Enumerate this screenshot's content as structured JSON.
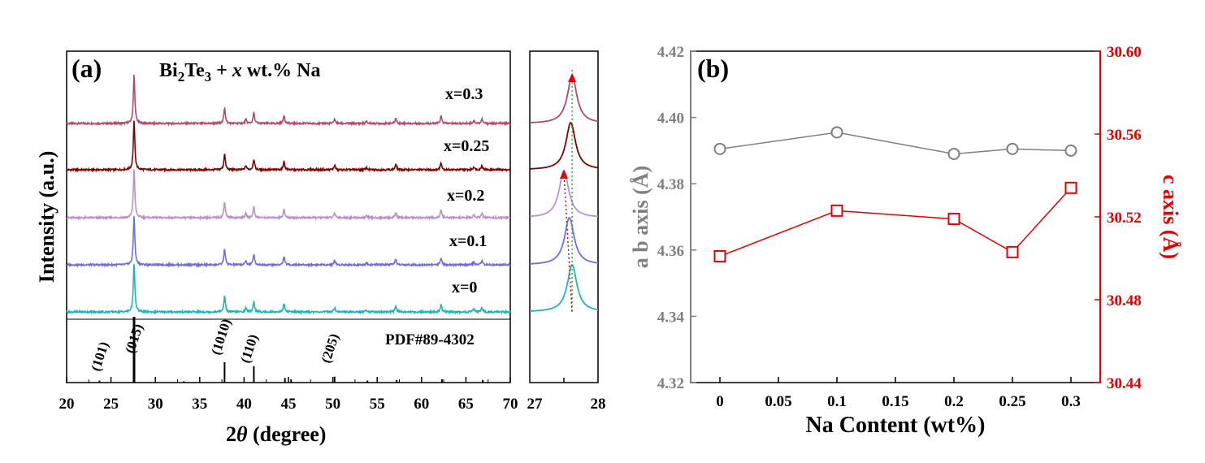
{
  "chart_data": [
    {
      "type": "line",
      "panel_label": "(a)",
      "title_parts": {
        "formula_a": "Bi",
        "sub_a": "2",
        "formula_b": "Te",
        "sub_b": "3",
        "plus": " + ",
        "x_italic": "x",
        "rest": " wt.% Na"
      },
      "xlabel_prefix": "2",
      "xlabel_theta": "θ",
      "xlabel_suffix": " (degree)",
      "ylabel": "Intensity (a.u.)",
      "xlim": [
        20,
        70
      ],
      "xticks": [
        "20",
        "25",
        "30",
        "35",
        "40",
        "45",
        "50",
        "55",
        "60",
        "65",
        "70"
      ],
      "series": [
        {
          "name": "x=0.3",
          "color": "#b04a6e"
        },
        {
          "name": "x=0.25",
          "color": "#800000"
        },
        {
          "name": "x=0.2",
          "color": "#b892cc"
        },
        {
          "name": "x=0.1",
          "color": "#6e6ee0"
        },
        {
          "name": "x=0",
          "color": "#21b3b5"
        }
      ],
      "peaks": [
        {
          "pos": 27.6,
          "rel": 1.0
        },
        {
          "pos": 37.8,
          "rel": 0.33
        },
        {
          "pos": 40.2,
          "rel": 0.08
        },
        {
          "pos": 41.1,
          "rel": 0.22
        },
        {
          "pos": 44.5,
          "rel": 0.17
        },
        {
          "pos": 50.2,
          "rel": 0.09
        },
        {
          "pos": 53.8,
          "rel": 0.04
        },
        {
          "pos": 57.1,
          "rel": 0.11
        },
        {
          "pos": 62.2,
          "rel": 0.15
        },
        {
          "pos": 65.9,
          "rel": 0.06
        },
        {
          "pos": 66.8,
          "rel": 0.09
        }
      ],
      "reference": {
        "label": "PDF#89-4302",
        "lines": [
          {
            "pos": 23.7,
            "rel": 0.03
          },
          {
            "pos": 27.6,
            "rel": 1.0
          },
          {
            "pos": 33.2,
            "rel": 0.02
          },
          {
            "pos": 37.8,
            "rel": 0.31
          },
          {
            "pos": 41.1,
            "rel": 0.25
          },
          {
            "pos": 44.6,
            "rel": 0.07
          },
          {
            "pos": 45.3,
            "rel": 0.05
          },
          {
            "pos": 50.2,
            "rel": 0.09
          },
          {
            "pos": 53.9,
            "rel": 0.03
          },
          {
            "pos": 57.2,
            "rel": 0.04
          },
          {
            "pos": 62.3,
            "rel": 0.05
          },
          {
            "pos": 66.9,
            "rel": 0.04
          }
        ],
        "hkl": [
          {
            "text": "(101)",
            "pos": 23.7
          },
          {
            "text": "(015)",
            "pos": 28.1
          },
          {
            "text": "(1010)",
            "pos": 37.8
          },
          {
            "text": "(110)",
            "pos": 41.1
          },
          {
            "text": "(205)",
            "pos": 50.2
          }
        ]
      }
    },
    {
      "type": "line",
      "panel_label": "",
      "xlim": [
        27,
        28
      ],
      "xticks": [
        "27",
        "28"
      ],
      "peak_positions": [
        27.62,
        27.6,
        27.5,
        27.58,
        27.62
      ],
      "series_colors": [
        "#b04a6e",
        "#800000",
        "#b892cc",
        "#6e6ee0",
        "#21b3b5"
      ],
      "reference_line_pos": 27.62
    },
    {
      "type": "line",
      "panel_label": "(b)",
      "xlabel": "Na Content (wt%)",
      "ylabel_left": "a b axis (Å)",
      "ylabel_right": "c axis (Å)",
      "x": [
        0,
        0.1,
        0.2,
        0.25,
        0.3
      ],
      "xticks": [
        "0",
        "0.05",
        "0.1",
        "0.15",
        "0.2",
        "0.25",
        "0.3"
      ],
      "xlim": [
        -0.025,
        0.325
      ],
      "ylim_left": [
        4.32,
        4.42
      ],
      "yticks_left": [
        "4.32",
        "4.34",
        "4.36",
        "4.38",
        "4.40",
        "4.42"
      ],
      "ylim_right": [
        30.44,
        30.6
      ],
      "yticks_right": [
        "30.44",
        "30.48",
        "30.52",
        "30.56",
        "30.60"
      ],
      "series": [
        {
          "axis": "left",
          "marker": "circle",
          "color": "#7f7f7f",
          "values": [
            4.3905,
            4.3955,
            4.389,
            4.3905,
            4.39
          ]
        },
        {
          "axis": "right",
          "marker": "square",
          "color": "#e00000",
          "values": [
            30.501,
            30.523,
            30.519,
            30.503,
            30.534
          ]
        }
      ]
    }
  ]
}
